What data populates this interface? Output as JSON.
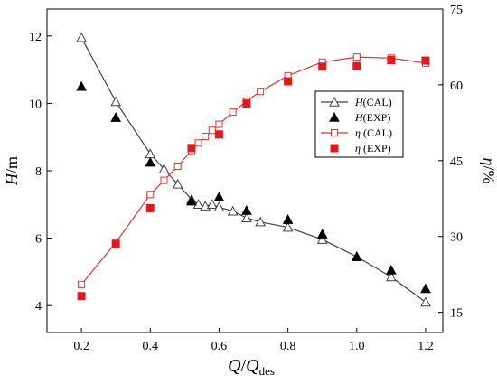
{
  "chart_data": {
    "type": "line",
    "title": "",
    "xlabel": {
      "main": "Q",
      "sep": "/",
      "sub_base": "Q",
      "sub": "des"
    },
    "ylabel_left": {
      "main": "H",
      "unit": "/m"
    },
    "ylabel_right": {
      "main": "η",
      "unit": "/%"
    },
    "xlim": [
      0.1,
      1.25
    ],
    "ylim_left": [
      3.2,
      12.8
    ],
    "ylim_right": [
      11,
      75
    ],
    "xticks": [
      0.2,
      0.4,
      0.6,
      0.8,
      1.0,
      1.2
    ],
    "xtick_labels": [
      "0.2",
      "0.4",
      "0.6",
      "0.8",
      "1.0",
      "1.2"
    ],
    "yticks_left": [
      4,
      6,
      8,
      10,
      12
    ],
    "ytick_labels_left": [
      "4",
      "6",
      "8",
      "10",
      "12"
    ],
    "yticks_right": [
      15,
      30,
      45,
      60,
      75
    ],
    "ytick_labels_right": [
      "15",
      "30",
      "45",
      "60",
      "75"
    ],
    "grid": false,
    "legend_position": "center-right",
    "series": [
      {
        "name": "H(CAL)",
        "label_main": "H",
        "label_rest": "(CAL)",
        "axis": "left",
        "style": "line-open-triangle",
        "color": "#404040",
        "x": [
          0.2,
          0.3,
          0.4,
          0.44,
          0.48,
          0.52,
          0.54,
          0.56,
          0.58,
          0.6,
          0.64,
          0.68,
          0.72,
          0.8,
          0.9,
          1.0,
          1.1,
          1.2
        ],
        "y": [
          11.95,
          10.05,
          8.5,
          8.05,
          7.6,
          7.15,
          7.0,
          6.95,
          7.0,
          6.92,
          6.8,
          6.6,
          6.48,
          6.32,
          5.96,
          5.45,
          4.85,
          4.1
        ]
      },
      {
        "name": "H(EXP)",
        "label_main": "H",
        "label_rest": "(EXP)",
        "axis": "left",
        "style": "filled-triangle",
        "color": "#000000",
        "x": [
          0.2,
          0.3,
          0.4,
          0.52,
          0.6,
          0.68,
          0.8,
          0.9,
          1.0,
          1.1,
          1.2
        ],
        "y": [
          10.5,
          9.58,
          8.25,
          7.1,
          7.22,
          6.82,
          6.55,
          6.12,
          5.45,
          5.05,
          4.5
        ]
      },
      {
        "name": "η (CAL)",
        "label_main": "η",
        "label_rest": " (CAL)",
        "axis": "right",
        "style": "line-open-square",
        "color": "#e8312e",
        "x": [
          0.2,
          0.3,
          0.4,
          0.44,
          0.48,
          0.52,
          0.54,
          0.56,
          0.58,
          0.6,
          0.64,
          0.68,
          0.72,
          0.8,
          0.9,
          1.0,
          1.1,
          1.2
        ],
        "y": [
          20.5,
          28.8,
          38.3,
          41.1,
          43.9,
          47.0,
          48.5,
          49.8,
          51.0,
          52.2,
          54.6,
          56.8,
          58.7,
          61.8,
          64.5,
          65.5,
          65.3,
          64.3
        ]
      },
      {
        "name": "η (EXP)",
        "label_main": "η",
        "label_rest": " (EXP)",
        "axis": "right",
        "style": "filled-square",
        "color": "#e31a1c",
        "x": [
          0.2,
          0.3,
          0.4,
          0.52,
          0.6,
          0.68,
          0.8,
          0.9,
          1.0,
          1.1,
          1.2
        ],
        "y": [
          18.2,
          28.5,
          35.6,
          47.5,
          50.2,
          56.3,
          60.7,
          63.6,
          63.7,
          64.9,
          64.8
        ]
      }
    ]
  }
}
